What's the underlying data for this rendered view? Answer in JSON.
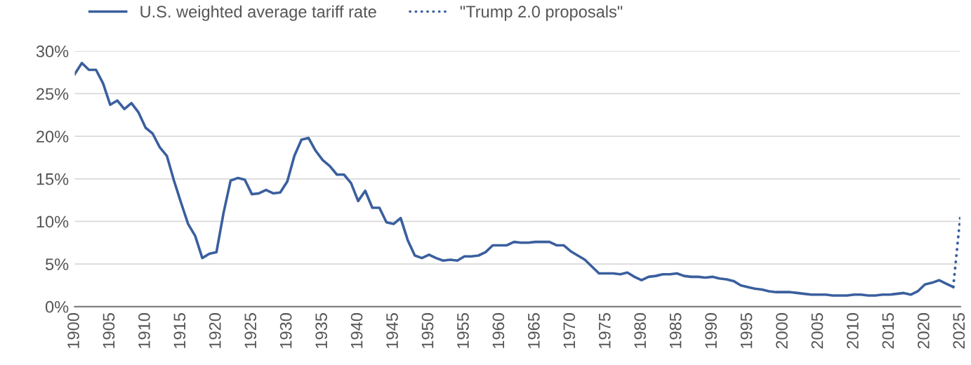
{
  "chart_data": {
    "type": "line",
    "legend": "top left",
    "grid": "y",
    "xlim": [
      1900,
      2025
    ],
    "xticks": [
      1900,
      1905,
      1910,
      1915,
      1920,
      1925,
      1930,
      1935,
      1940,
      1945,
      1950,
      1955,
      1960,
      1965,
      1970,
      1975,
      1980,
      1985,
      1990,
      1995,
      2000,
      2005,
      2010,
      2015,
      2020,
      2025
    ],
    "ylim": [
      0,
      30
    ],
    "yticks": [
      {
        "value": 0,
        "label": "0%"
      },
      {
        "value": 5,
        "label": "5%"
      },
      {
        "value": 10,
        "label": "10%"
      },
      {
        "value": 15,
        "label": "15%"
      },
      {
        "value": 20,
        "label": "20%"
      },
      {
        "value": 25,
        "label": "25%"
      },
      {
        "value": 30,
        "label": "30%"
      }
    ],
    "series": [
      {
        "name": "U.S. weighted average tariff rate",
        "color": "#3a5f9e",
        "line_style": "solid",
        "x": [
          1900,
          1901,
          1902,
          1903,
          1904,
          1905,
          1906,
          1907,
          1908,
          1909,
          1910,
          1911,
          1912,
          1913,
          1914,
          1915,
          1916,
          1917,
          1918,
          1919,
          1920,
          1921,
          1922,
          1923,
          1924,
          1925,
          1926,
          1927,
          1928,
          1929,
          1930,
          1931,
          1932,
          1933,
          1934,
          1935,
          1936,
          1937,
          1938,
          1939,
          1940,
          1941,
          1942,
          1943,
          1944,
          1945,
          1946,
          1947,
          1948,
          1949,
          1950,
          1951,
          1952,
          1953,
          1954,
          1955,
          1956,
          1957,
          1958,
          1959,
          1960,
          1961,
          1962,
          1963,
          1964,
          1965,
          1966,
          1967,
          1968,
          1969,
          1970,
          1971,
          1972,
          1973,
          1974,
          1975,
          1976,
          1977,
          1978,
          1979,
          1980,
          1981,
          1982,
          1983,
          1984,
          1985,
          1986,
          1987,
          1988,
          1989,
          1990,
          1991,
          1992,
          1993,
          1994,
          1995,
          1996,
          1997,
          1998,
          1999,
          2000,
          2001,
          2002,
          2003,
          2004,
          2005,
          2006,
          2007,
          2008,
          2009,
          2010,
          2011,
          2012,
          2013,
          2014,
          2015,
          2016,
          2017,
          2018,
          2019,
          2020,
          2021,
          2022,
          2023,
          2024
        ],
        "values": [
          27.3,
          28.6,
          27.8,
          27.8,
          26.2,
          23.7,
          24.2,
          23.2,
          23.9,
          22.8,
          21.0,
          20.3,
          18.7,
          17.7,
          14.8,
          12.2,
          9.7,
          8.3,
          5.7,
          6.2,
          6.4,
          11.0,
          14.8,
          15.1,
          14.9,
          13.2,
          13.3,
          13.7,
          13.3,
          13.4,
          14.7,
          17.7,
          19.6,
          19.8,
          18.3,
          17.2,
          16.5,
          15.5,
          15.5,
          14.5,
          12.4,
          13.6,
          11.6,
          11.6,
          9.9,
          9.7,
          10.4,
          7.8,
          6.0,
          5.7,
          6.1,
          5.7,
          5.4,
          5.5,
          5.4,
          5.9,
          5.9,
          6.0,
          6.4,
          7.2,
          7.2,
          7.2,
          7.6,
          7.5,
          7.5,
          7.6,
          7.6,
          7.6,
          7.2,
          7.2,
          6.5,
          6.0,
          5.5,
          4.7,
          3.9,
          3.9,
          3.9,
          3.8,
          4.0,
          3.5,
          3.1,
          3.5,
          3.6,
          3.8,
          3.8,
          3.9,
          3.6,
          3.5,
          3.5,
          3.4,
          3.5,
          3.3,
          3.2,
          3.0,
          2.5,
          2.3,
          2.1,
          2.0,
          1.8,
          1.7,
          1.7,
          1.7,
          1.6,
          1.5,
          1.4,
          1.4,
          1.4,
          1.3,
          1.3,
          1.3,
          1.4,
          1.4,
          1.3,
          1.3,
          1.4,
          1.4,
          1.5,
          1.6,
          1.4,
          1.8,
          2.6,
          2.8,
          3.1,
          2.7,
          2.3
        ]
      },
      {
        "name": "\"Trump 2.0 proposals\"",
        "color": "#3a5f9e",
        "line_style": "dotted",
        "x": [
          2024,
          2025
        ],
        "values": [
          2.3,
          10.6
        ]
      }
    ]
  }
}
